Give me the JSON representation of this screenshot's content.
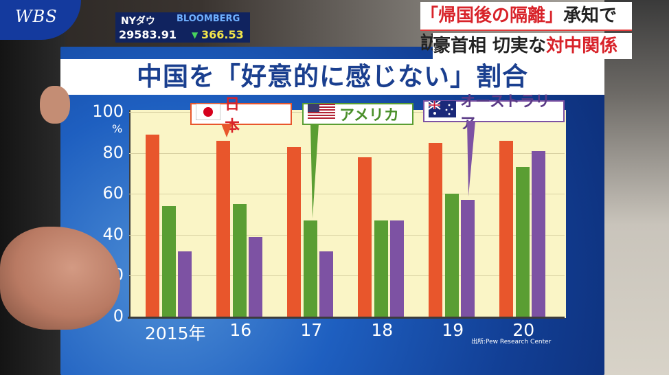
{
  "broadcast": {
    "logo": "WBS",
    "ticker_label": "NYダウ",
    "ticker_name": "BLOOMBERG",
    "ticker_value": "29583.91",
    "ticker_change": "366.53",
    "headline_line1_quote": "「帰国後の隔離」",
    "headline_line1_rest": "承知で訪日",
    "headline_line2_a": "豪首相 切実な",
    "headline_line2_b": "対中関係"
  },
  "colors": {
    "japan": "#e8562c",
    "usa": "#5a9e33",
    "australia": "#7d52a3",
    "plot_bg": "#faf5c6",
    "title": "#1a3f8f"
  },
  "chart_data": {
    "type": "bar",
    "title": "中国を「好意的に感じない」割合",
    "ylabel": "%",
    "ylim": [
      0,
      100
    ],
    "yticks": [
      "0",
      "20",
      "40",
      "60",
      "80",
      "100"
    ],
    "categories": [
      "2015年",
      "16",
      "17",
      "18",
      "19",
      "20"
    ],
    "series": [
      {
        "name": "日 本",
        "flag": "japan-flag-icon",
        "values": [
          89,
          86,
          83,
          78,
          85,
          86
        ]
      },
      {
        "name": "アメリカ",
        "flag": "usa-flag-icon",
        "values": [
          54,
          55,
          47,
          47,
          60,
          73
        ]
      },
      {
        "name": "オーストラリア",
        "flag": "australia-flag-icon",
        "values": [
          32,
          39,
          32,
          47,
          57,
          81
        ]
      }
    ],
    "source": "出所:Pew Research Center",
    "grid": true,
    "legend": "top"
  }
}
